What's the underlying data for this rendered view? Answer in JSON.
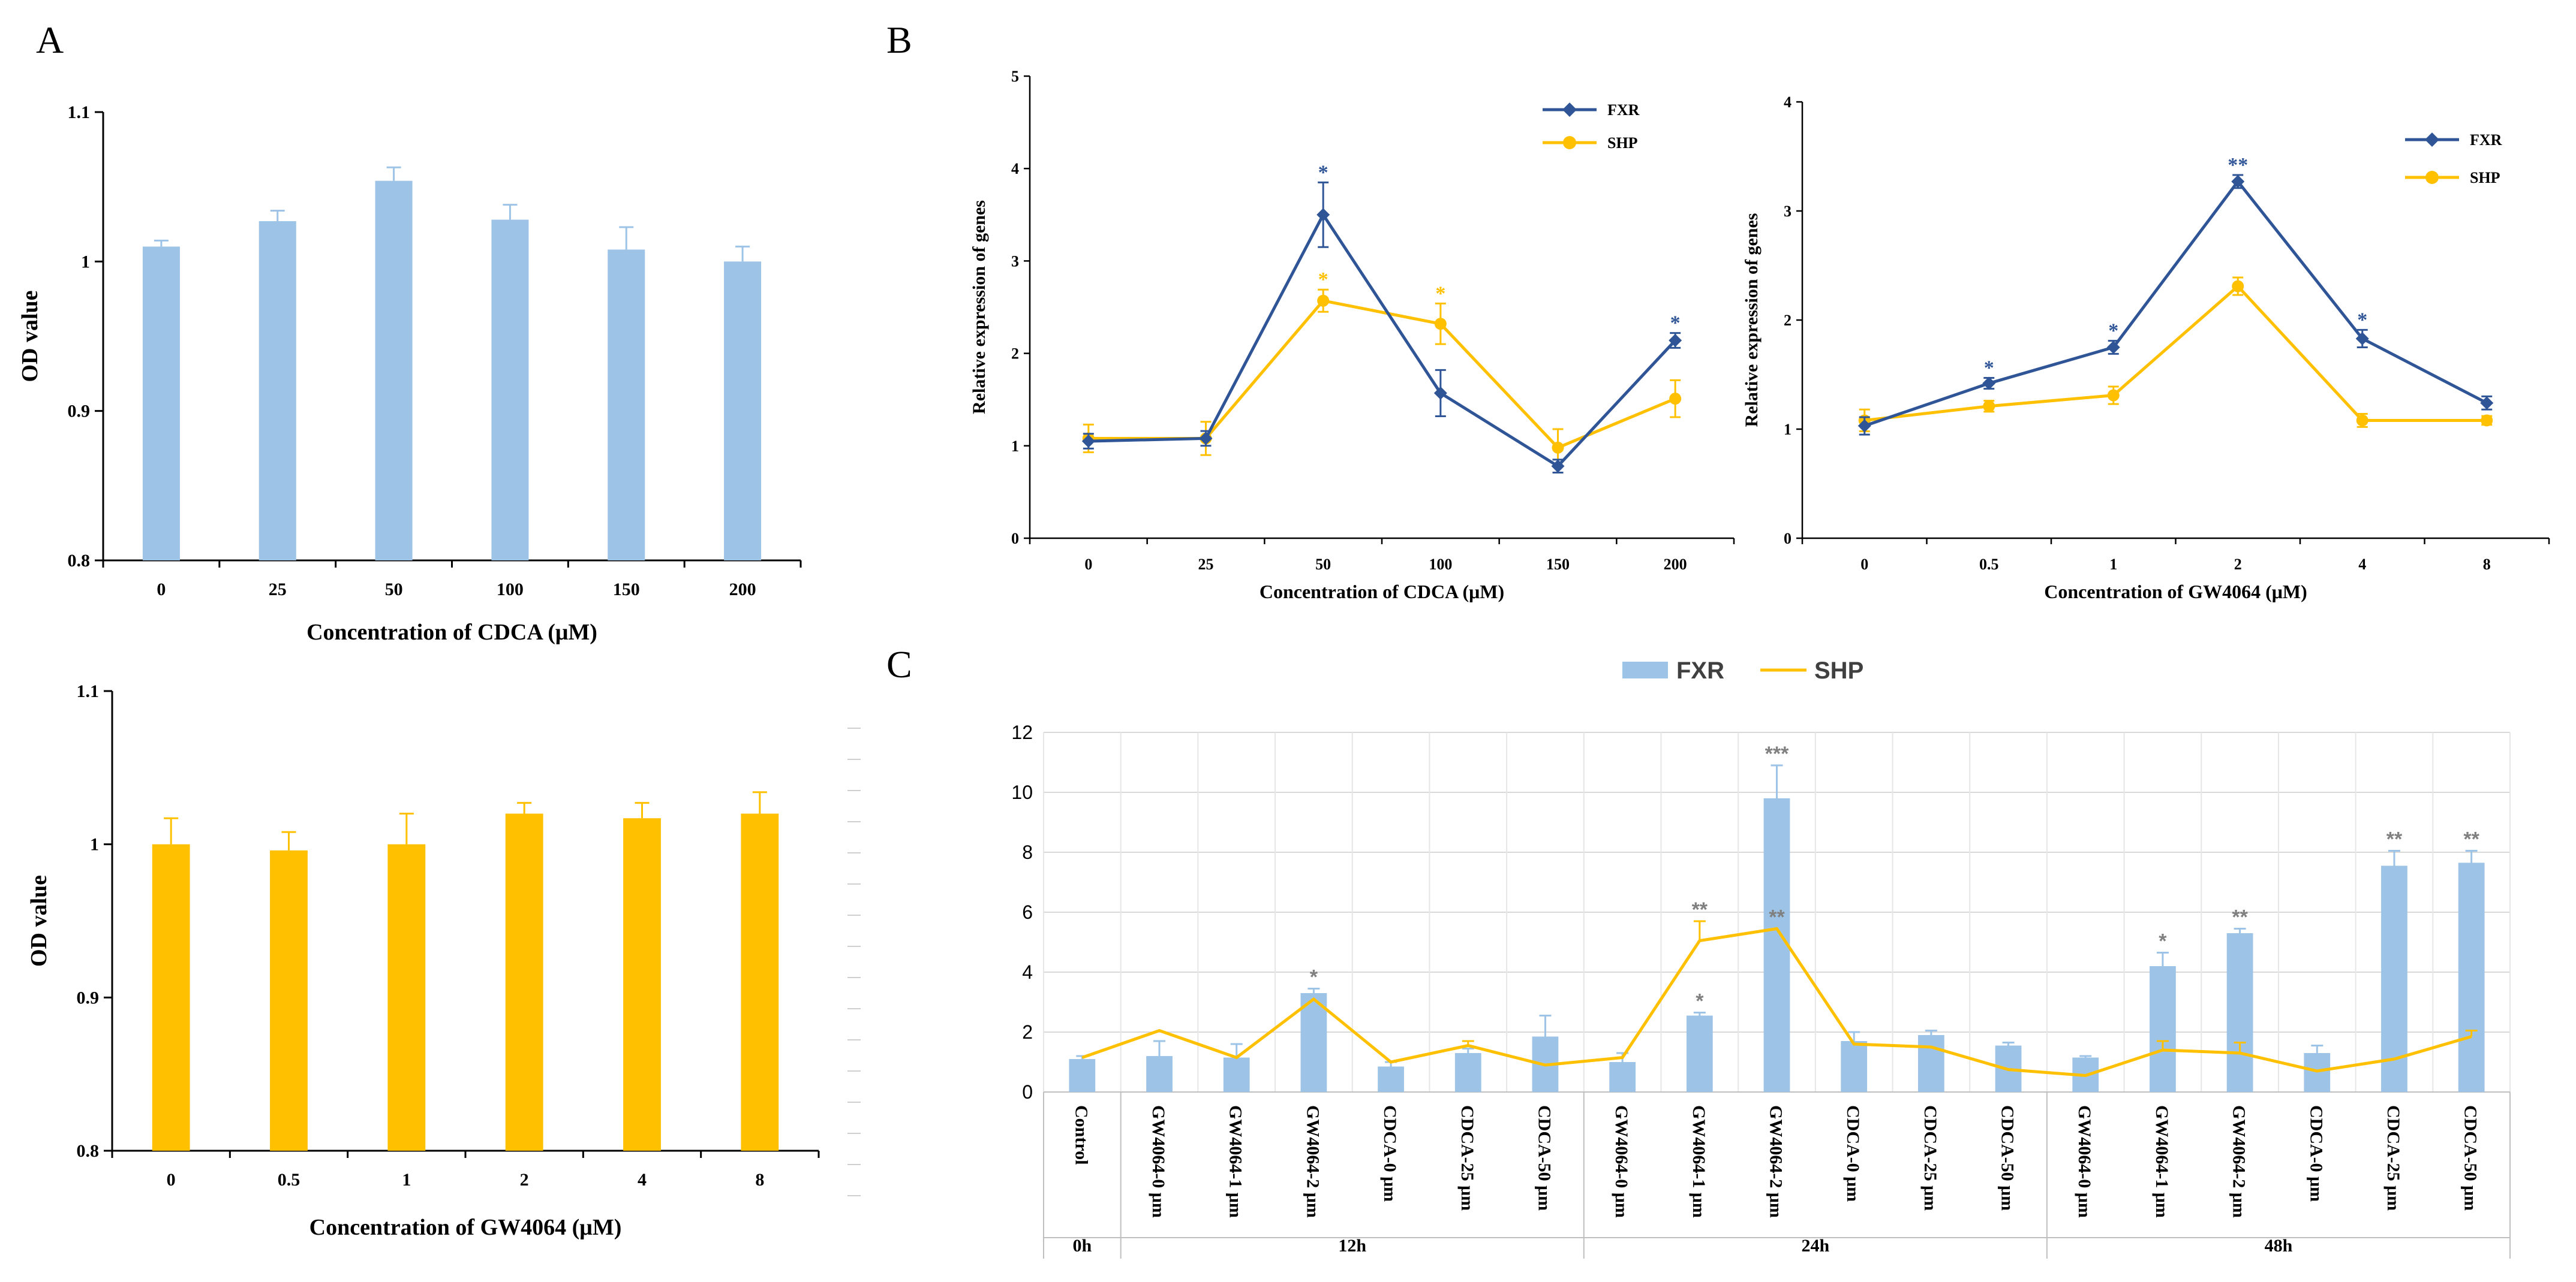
{
  "panels": {
    "A": "A",
    "B": "B",
    "C": "C"
  },
  "colors": {
    "blue_bar": "#9DC3E6",
    "yellow_bar": "#FFC000",
    "fxr_line": "#2F5597",
    "shp_line": "#FFC000",
    "sig_b_fxr": "#2F5597",
    "sig_b_shp": "#FFC000",
    "sig_c": "#808080"
  },
  "chart_data": [
    {
      "id": "A1",
      "type": "bar",
      "title": "",
      "xlabel": "Concentration of CDCA (μM)",
      "ylabel": "OD value",
      "ylim": [
        0.8,
        1.1
      ],
      "yticks": [
        "0.8",
        "0.9",
        "1",
        "1.1"
      ],
      "categories": [
        "0",
        "25",
        "50",
        "100",
        "150",
        "200"
      ],
      "values": [
        1.01,
        1.027,
        1.054,
        1.028,
        1.008,
        1.0
      ],
      "errors": [
        0.004,
        0.007,
        0.009,
        0.01,
        0.015,
        0.01
      ],
      "color": "blue_bar"
    },
    {
      "id": "A2",
      "type": "bar",
      "title": "",
      "xlabel": "Concentration of GW4064 (μM)",
      "ylabel": "OD value",
      "ylim": [
        0.8,
        1.1
      ],
      "yticks": [
        "0.8",
        "0.9",
        "1",
        "1.1"
      ],
      "categories": [
        "0",
        "0.5",
        "1",
        "2",
        "4",
        "8"
      ],
      "values": [
        1.0,
        0.996,
        1.0,
        1.02,
        1.017,
        1.02
      ],
      "errors": [
        0.017,
        0.012,
        0.02,
        0.007,
        0.01,
        0.014
      ],
      "color": "yellow_bar"
    },
    {
      "id": "B1",
      "type": "line",
      "title": "",
      "xlabel": "Concentration of CDCA (μM)",
      "ylabel": "Relative expression of genes",
      "ylim": [
        0,
        5
      ],
      "yticks": [
        "0",
        "1",
        "2",
        "3",
        "4",
        "5"
      ],
      "categories": [
        "0",
        "25",
        "50",
        "100",
        "150",
        "200"
      ],
      "series": [
        {
          "name": "FXR",
          "values": [
            1.05,
            1.08,
            3.5,
            1.57,
            0.78,
            2.14
          ],
          "errors": [
            0.08,
            0.08,
            0.35,
            0.25,
            0.07,
            0.08
          ],
          "sig": [
            "",
            "",
            "*",
            "",
            "",
            "*"
          ]
        },
        {
          "name": "SHP",
          "values": [
            1.08,
            1.08,
            2.57,
            2.32,
            0.98,
            1.51
          ],
          "errors": [
            0.15,
            0.18,
            0.12,
            0.22,
            0.2,
            0.2
          ],
          "sig": [
            "",
            "",
            "*",
            "*",
            "",
            ""
          ]
        }
      ]
    },
    {
      "id": "B2",
      "type": "line",
      "title": "",
      "xlabel": "Concentration of GW4064 (μM)",
      "ylabel": "Relative expression of genes",
      "ylim": [
        0,
        4
      ],
      "yticks": [
        "0",
        "1",
        "2",
        "3",
        "4"
      ],
      "categories": [
        "0",
        "0.5",
        "1",
        "2",
        "4",
        "8"
      ],
      "series": [
        {
          "name": "FXR",
          "values": [
            1.03,
            1.42,
            1.75,
            3.27,
            1.83,
            1.24
          ],
          "errors": [
            0.08,
            0.05,
            0.06,
            0.06,
            0.08,
            0.06
          ],
          "sig": [
            "",
            "*",
            "*",
            "**",
            "*",
            ""
          ]
        },
        {
          "name": "SHP",
          "values": [
            1.08,
            1.21,
            1.31,
            2.31,
            1.08,
            1.08
          ],
          "errors": [
            0.1,
            0.05,
            0.08,
            0.08,
            0.06,
            0.04
          ],
          "sig": [
            "",
            "",
            "",
            "",
            "",
            ""
          ]
        }
      ]
    },
    {
      "id": "C",
      "type": "bar+line",
      "title": "",
      "ylim": [
        0,
        12
      ],
      "yticks": [
        "0",
        "2",
        "4",
        "6",
        "8",
        "10",
        "12"
      ],
      "categories": [
        "Control",
        "GW4064-0 μm",
        "GW4064-1 μm",
        "GW4064-2 μm",
        "CDCA-0 μm",
        "CDCA-25 μm",
        "CDCA-50 μm",
        "GW4064-0 μm",
        "GW4064-1 μm",
        "GW4064-2 μm",
        "CDCA-0 μm",
        "CDCA-25 μm",
        "CDCA-50 μm",
        "GW4064-0 μm",
        "GW4064-1 μm",
        "GW4064-2 μm",
        "CDCA-0 μm",
        "CDCA-25 μm",
        "CDCA-50 μm"
      ],
      "groups": [
        {
          "label": "0h",
          "start": 0,
          "end": 0
        },
        {
          "label": "12h",
          "start": 1,
          "end": 6
        },
        {
          "label": "24h",
          "start": 7,
          "end": 12
        },
        {
          "label": "48h",
          "start": 13,
          "end": 18
        }
      ],
      "legend": [
        "FXR",
        "SHP"
      ],
      "series": [
        {
          "name": "FXR",
          "kind": "bar",
          "values": [
            1.1,
            1.2,
            1.15,
            3.3,
            0.85,
            1.3,
            1.85,
            1.0,
            2.55,
            9.8,
            1.7,
            1.9,
            1.55,
            1.15,
            4.2,
            5.3,
            1.3,
            7.55,
            7.65
          ],
          "errors": [
            0.1,
            0.5,
            0.45,
            0.15,
            0.15,
            0.15,
            0.7,
            0.3,
            0.1,
            1.1,
            0.3,
            0.15,
            0.1,
            0.05,
            0.45,
            0.15,
            0.25,
            0.5,
            0.4
          ],
          "sig": [
            "",
            "",
            "",
            "*",
            "",
            "",
            "",
            "",
            "*",
            "***",
            "",
            "",
            "",
            "",
            "*",
            "**",
            "",
            "**",
            "**"
          ]
        },
        {
          "name": "SHP",
          "kind": "line",
          "values": [
            1.15,
            2.05,
            1.15,
            3.1,
            1.0,
            1.55,
            0.9,
            1.15,
            5.05,
            5.45,
            1.6,
            1.5,
            0.75,
            0.55,
            1.4,
            1.3,
            0.7,
            1.1,
            1.85
          ],
          "errors": [
            0,
            0,
            0,
            0,
            0,
            0.15,
            0,
            0,
            0.65,
            0,
            0,
            0,
            0,
            0,
            0.3,
            0.35,
            0,
            0,
            0.2
          ],
          "sig": [
            "",
            "",
            "",
            "",
            "",
            "",
            "",
            "",
            "**",
            "**",
            "",
            "",
            "",
            "",
            "",
            "",
            "",
            "",
            ""
          ]
        }
      ]
    }
  ]
}
